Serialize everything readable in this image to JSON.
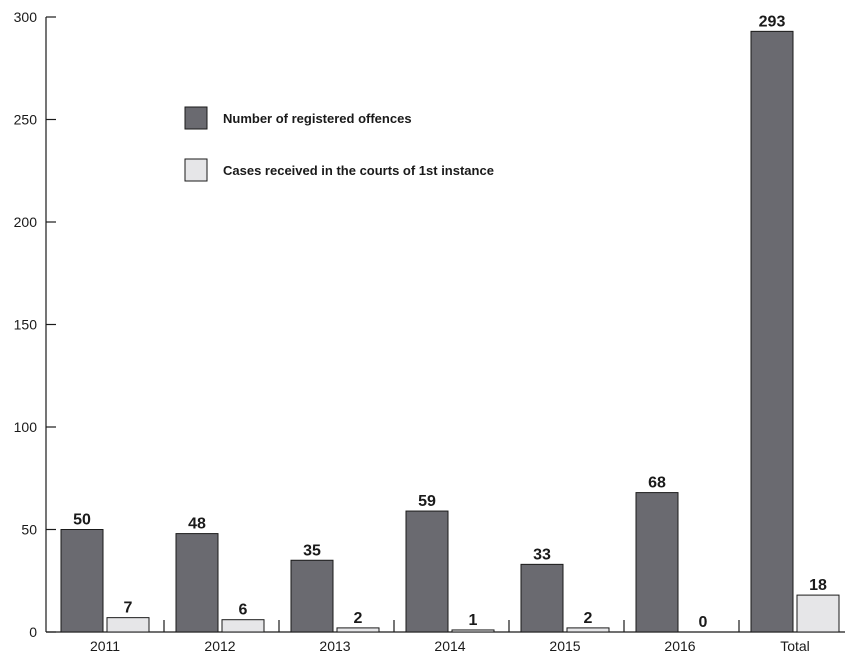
{
  "chart_data": {
    "type": "bar",
    "title": "",
    "xlabel": "",
    "ylabel": "",
    "categories": [
      "2011",
      "2012",
      "2013",
      "2014",
      "2015",
      "2016",
      "Total"
    ],
    "series": [
      {
        "name": "Number of registered offences",
        "color": "#6a6a70",
        "values": [
          50,
          48,
          35,
          59,
          33,
          68,
          293
        ]
      },
      {
        "name": "Cases received in the courts of 1st instance",
        "color": "#e6e6e8",
        "values": [
          7,
          6,
          2,
          1,
          2,
          0,
          18
        ]
      }
    ],
    "ylim": [
      0,
      300
    ],
    "yticks": [
      "0",
      "50",
      "100",
      "150",
      "200",
      "250",
      "300"
    ],
    "grid": false,
    "legend_position": "upper-left-inside"
  }
}
